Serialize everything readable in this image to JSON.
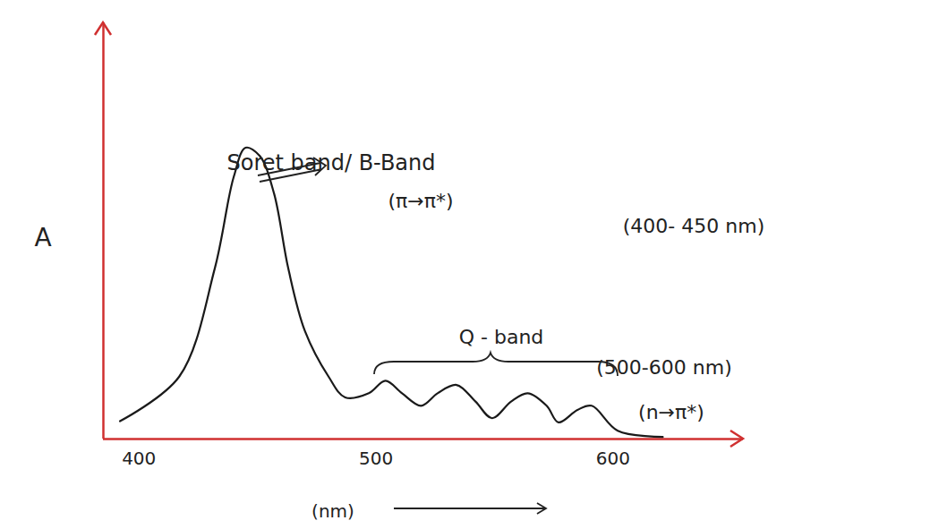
{
  "chart_data": {
    "type": "line",
    "x_label": "(nm)",
    "y_label": "A",
    "x": [
      392,
      417,
      432,
      440,
      445,
      451,
      457,
      463,
      470,
      480,
      487,
      497,
      504,
      511,
      519,
      526,
      534,
      542,
      549,
      557,
      564,
      572,
      577,
      585,
      591,
      602,
      621
    ],
    "values": [
      4.3,
      15,
      41,
      63,
      70,
      68,
      59,
      41,
      26,
      15,
      10,
      11,
      14,
      11,
      8,
      11,
      13,
      9,
      5,
      9,
      11,
      8,
      4,
      7,
      8,
      2,
      0.5
    ],
    "xlim": [
      385,
      655
    ],
    "ylim": [
      0,
      100
    ],
    "xticks": [
      400,
      500,
      600
    ],
    "yticks": [],
    "tick_labels": "x",
    "grid": false,
    "color": "#1a1a1a",
    "annotations": [
      "Soret band/ B-Band",
      "(π→π*)",
      "(400- 450 nm)",
      "Q - band",
      "(500-600 nm)",
      "(n→π*)"
    ]
  }
}
